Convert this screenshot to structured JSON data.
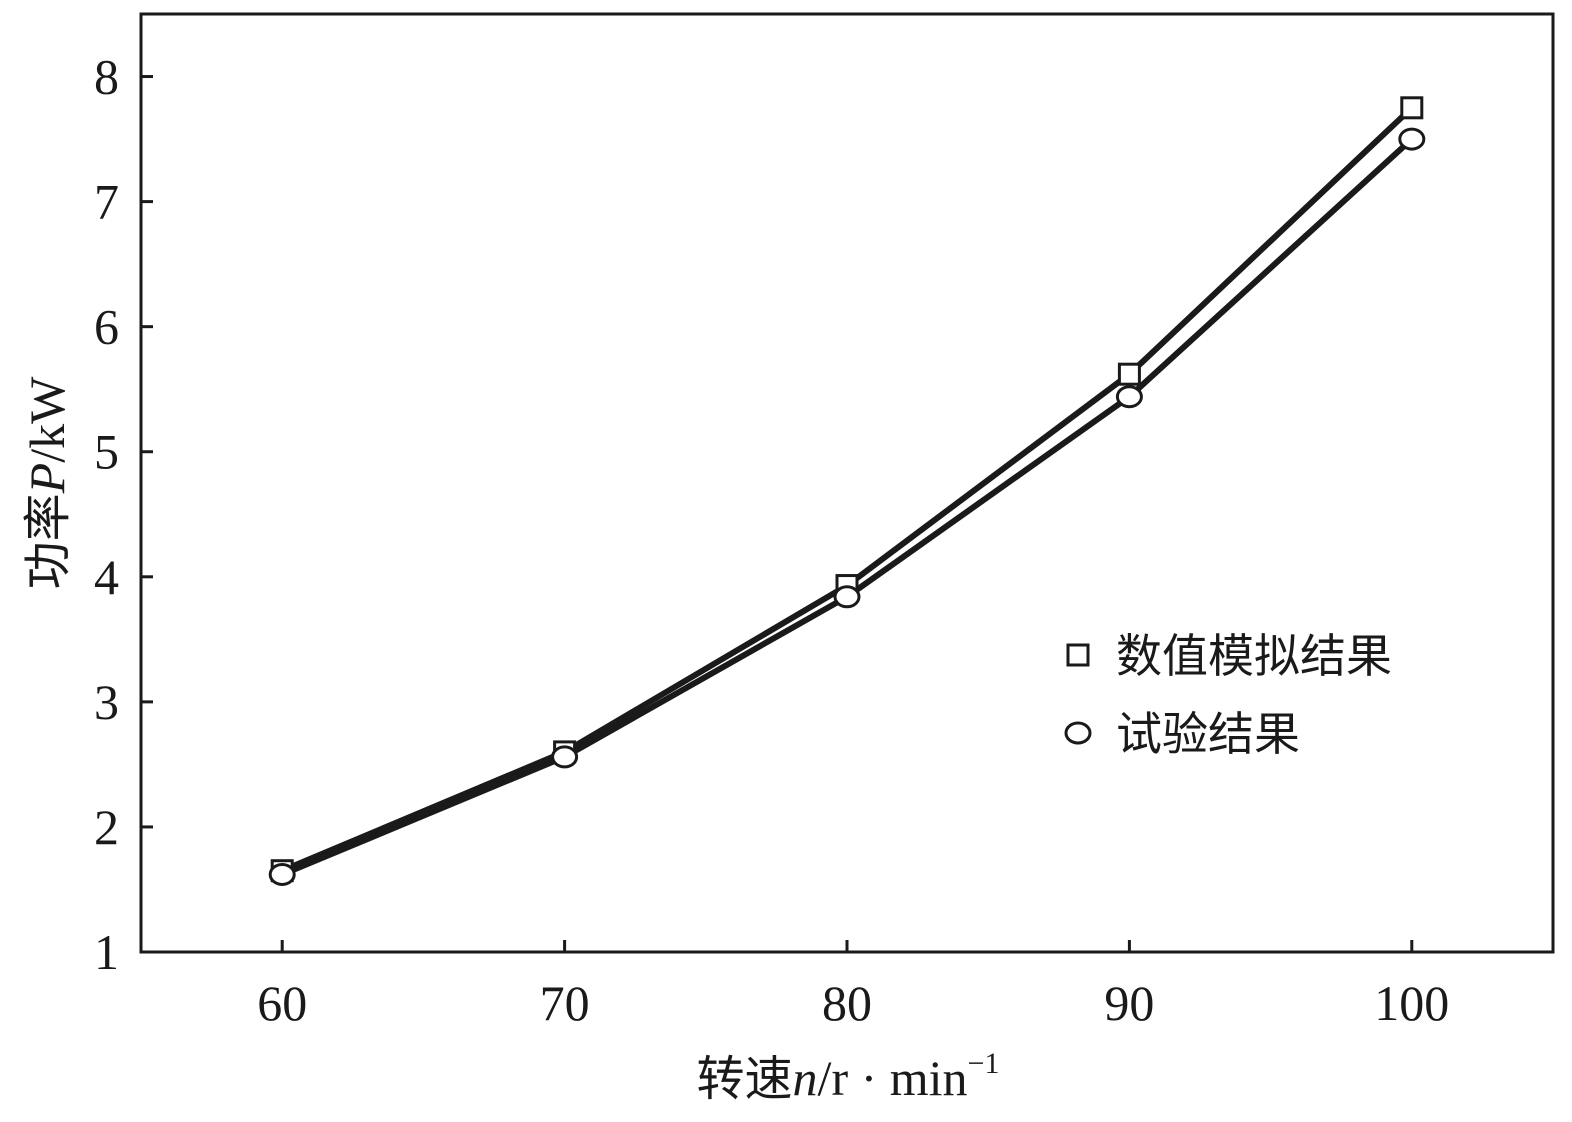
{
  "chart_data": {
    "type": "line",
    "x": [
      60,
      70,
      80,
      90,
      100
    ],
    "series": [
      {
        "name": "数值模拟结果",
        "marker": "square",
        "values": [
          1.65,
          2.6,
          3.93,
          5.62,
          7.75
        ]
      },
      {
        "name": "试验结果",
        "marker": "circle",
        "values": [
          1.62,
          2.56,
          3.84,
          5.44,
          7.5
        ]
      }
    ],
    "xlim": [
      55,
      105
    ],
    "ylim": [
      1,
      8.5
    ],
    "xticks": [
      60,
      70,
      80,
      90,
      100
    ],
    "yticks": [
      1,
      2,
      3,
      4,
      5,
      6,
      7,
      8
    ],
    "xlabel": {
      "prefix": "转速",
      "var": "n",
      "unit": "/r · min",
      "exp": "−1"
    },
    "ylabel": {
      "prefix": "功率",
      "var": "P",
      "unit": "/kW"
    },
    "grid": false,
    "legend_position": "right",
    "line_color": "#1a1a1a",
    "marker_fill": "#ffffff"
  }
}
